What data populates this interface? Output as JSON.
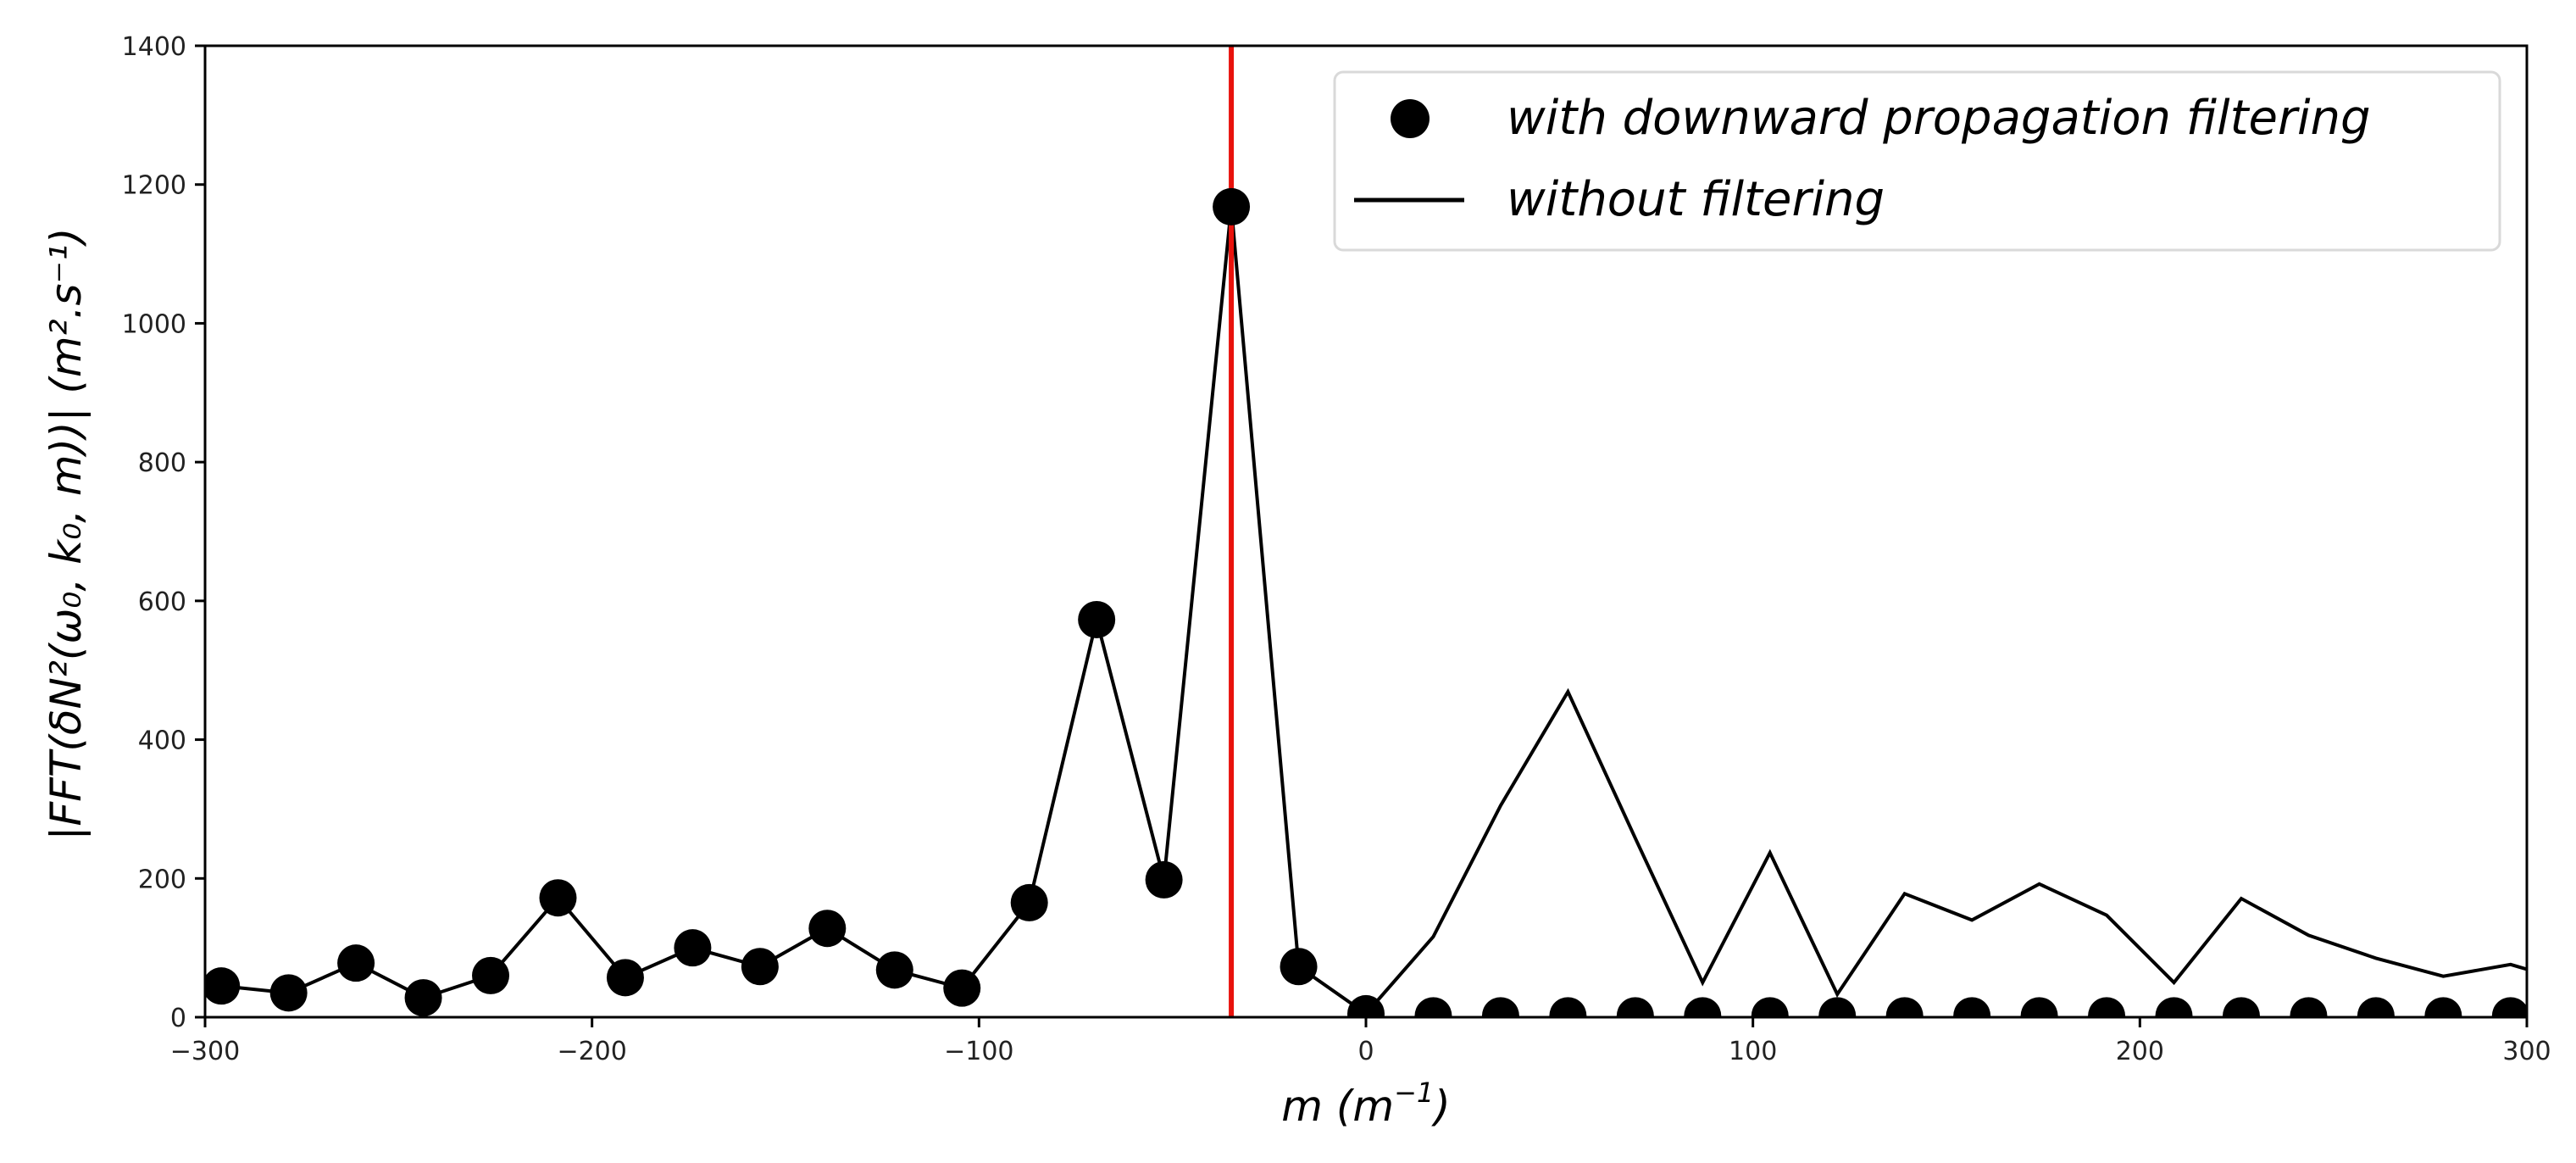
{
  "chart_data": {
    "type": "line",
    "title": "",
    "xlabel": "m (m^-1)",
    "ylabel": "|FFT(δN²(ω0, k0, m))| (m².s^-1)",
    "xlim": [
      -300,
      300
    ],
    "ylim": [
      0,
      1400
    ],
    "grid": false,
    "legend_position": "upper right",
    "x_ticks": [
      -300,
      -200,
      -100,
      0,
      100,
      200,
      300
    ],
    "y_ticks": [
      0,
      200,
      400,
      600,
      800,
      1000,
      1200,
      1400
    ],
    "vertical_line": {
      "x": -34.8,
      "color": "#e8120c"
    },
    "x": [
      -295.8,
      -278.4,
      -261.0,
      -243.6,
      -226.2,
      -208.8,
      -191.4,
      -174.0,
      -156.6,
      -139.2,
      -121.8,
      -104.4,
      -87.0,
      -69.6,
      -52.2,
      -34.8,
      -17.4,
      0.0,
      17.4,
      34.8,
      52.2,
      69.6,
      87.0,
      104.4,
      121.8,
      139.2,
      156.6,
      174.0,
      191.4,
      208.8,
      226.2,
      243.6,
      261.0,
      278.4,
      295.8
    ],
    "series": [
      {
        "name": "with downward propagation filtering",
        "style": "markers",
        "color": "#000000",
        "values": [
          45,
          35,
          78,
          28,
          60,
          172,
          57,
          100,
          73,
          128,
          68,
          42,
          165,
          573,
          198,
          1168,
          73,
          5,
          2,
          2,
          2,
          2,
          2,
          2,
          2,
          2,
          2,
          2,
          2,
          2,
          2,
          2,
          2,
          2,
          2
        ]
      },
      {
        "name": "without filtering",
        "style": "line",
        "color": "#000000",
        "values": [
          45,
          35,
          78,
          28,
          60,
          172,
          57,
          100,
          73,
          128,
          68,
          42,
          165,
          573,
          198,
          1168,
          73,
          5,
          116,
          305,
          469,
          258,
          50,
          237,
          33,
          178,
          140,
          192,
          147,
          50,
          171,
          118,
          85,
          59,
          76
        ],
        "end_point": {
          "x": 300,
          "y": 69
        }
      }
    ]
  },
  "axes": {
    "x_tick_labels": [
      "−300",
      "−200",
      "−100",
      "0",
      "100",
      "200",
      "300"
    ],
    "y_tick_labels": [
      "0",
      "200",
      "400",
      "600",
      "800",
      "1000",
      "1200",
      "1400"
    ],
    "xlabel_text": "m (m",
    "xlabel_sup": "−1",
    "xlabel_close": ")",
    "ylabel_text": "|FFT(δN²(ω₀, k₀, m))| (m².s⁻¹)"
  },
  "legend": {
    "items": [
      {
        "label": "with downward propagation filtering",
        "marker": "circle"
      },
      {
        "label": "without filtering",
        "marker": "line"
      }
    ]
  }
}
